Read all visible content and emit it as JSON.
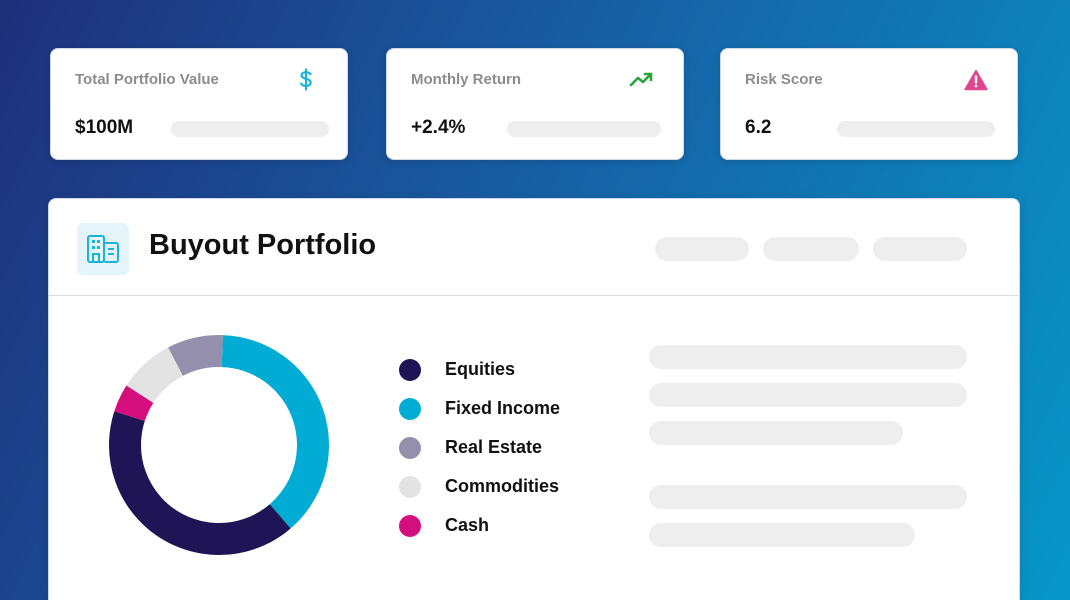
{
  "stats": [
    {
      "label": "Total Portfolio Value",
      "value": "$100M",
      "icon": "dollar-icon",
      "icon_color": "#1bb3d6"
    },
    {
      "label": "Monthly Return",
      "value": "+2.4%",
      "icon": "trending-up-icon",
      "icon_color": "#2aa33c"
    },
    {
      "label": "Risk Score",
      "value": "6.2",
      "icon": "warning-icon",
      "icon_color": "#e0468f"
    }
  ],
  "portfolio": {
    "title": "Buyout Portfolio",
    "icon": "building-icon",
    "allocation": [
      {
        "label": "Equities",
        "color": "#1e1456",
        "value": 40
      },
      {
        "label": "Fixed Income",
        "color": "#00acd4",
        "value": 37
      },
      {
        "label": "Real Estate",
        "color": "#958fae",
        "value": 8
      },
      {
        "label": "Commodities",
        "color": "#e3e3e3",
        "value": 8
      },
      {
        "label": "Cash",
        "color": "#d40e7c",
        "value": 4
      }
    ]
  }
}
